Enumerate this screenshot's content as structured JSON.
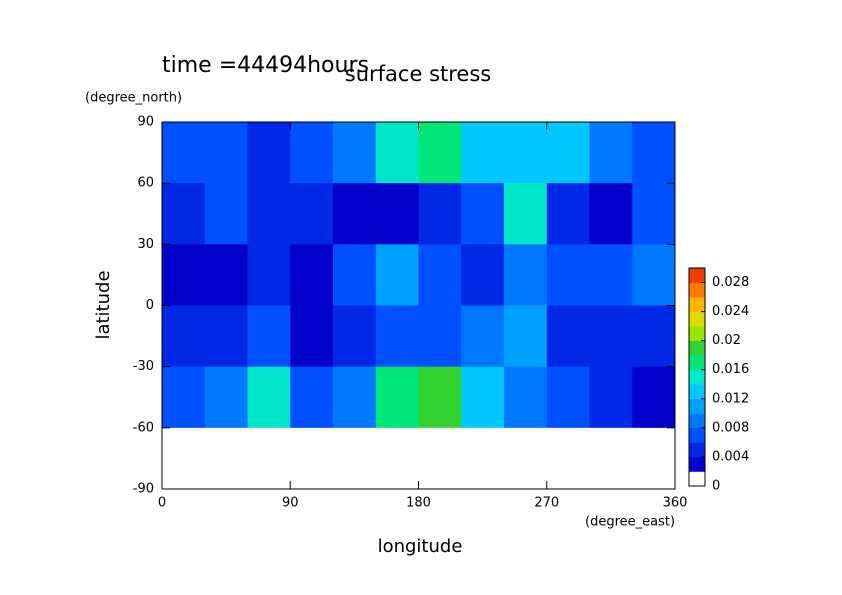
{
  "chart_data": {
    "type": "contour",
    "title": "surface stress",
    "subtitle": "time =44494hours",
    "x_label": "longitude",
    "y_label": "latitude",
    "x_unit": "(degree_east)",
    "y_unit": "(degree_north)",
    "x": [
      15,
      45,
      75,
      105,
      135,
      165,
      195,
      225,
      255,
      285,
      315,
      345
    ],
    "y": [
      75,
      45,
      15,
      -15,
      -45,
      -75
    ],
    "z": [
      [
        0.006,
        0.006,
        0.005,
        0.006,
        0.008,
        0.014,
        0.016,
        0.012,
        0.012,
        0.012,
        0.008,
        0.006
      ],
      [
        0.004,
        0.006,
        0.005,
        0.004,
        0.002,
        0.003,
        0.004,
        0.006,
        0.014,
        0.004,
        0.002,
        0.006
      ],
      [
        0.002,
        0.003,
        0.004,
        0.002,
        0.006,
        0.01,
        0.006,
        0.004,
        0.008,
        0.006,
        0.006,
        0.008
      ],
      [
        0.004,
        0.004,
        0.006,
        0.002,
        0.004,
        0.006,
        0.006,
        0.008,
        0.01,
        0.004,
        0.004,
        0.004
      ],
      [
        0.006,
        0.008,
        0.014,
        0.006,
        0.008,
        0.016,
        0.018,
        0.012,
        0.008,
        0.006,
        0.004,
        0.002
      ],
      [
        0,
        0,
        0,
        0,
        0,
        0,
        0,
        0,
        0,
        0,
        0,
        0
      ]
    ],
    "xlim": [
      0,
      360
    ],
    "xticks": [
      0,
      90,
      180,
      270,
      360
    ],
    "ylim": [
      -90,
      90
    ],
    "yticks": [
      -90,
      -60,
      -30,
      0,
      30,
      60,
      90
    ],
    "clim": [
      0,
      0.03
    ],
    "cticks": [
      0,
      0.004,
      0.008,
      0.012,
      0.016,
      0.02,
      0.024,
      0.028
    ],
    "colors": [
      "#ffffff",
      "#0000c8",
      "#0028e6",
      "#0050ff",
      "#0078ff",
      "#00a0ff",
      "#00c8ff",
      "#00e6c8",
      "#00e678",
      "#32d232",
      "#96e600",
      "#dcdc00",
      "#ffb400",
      "#ff7800",
      "#f03c00"
    ]
  }
}
